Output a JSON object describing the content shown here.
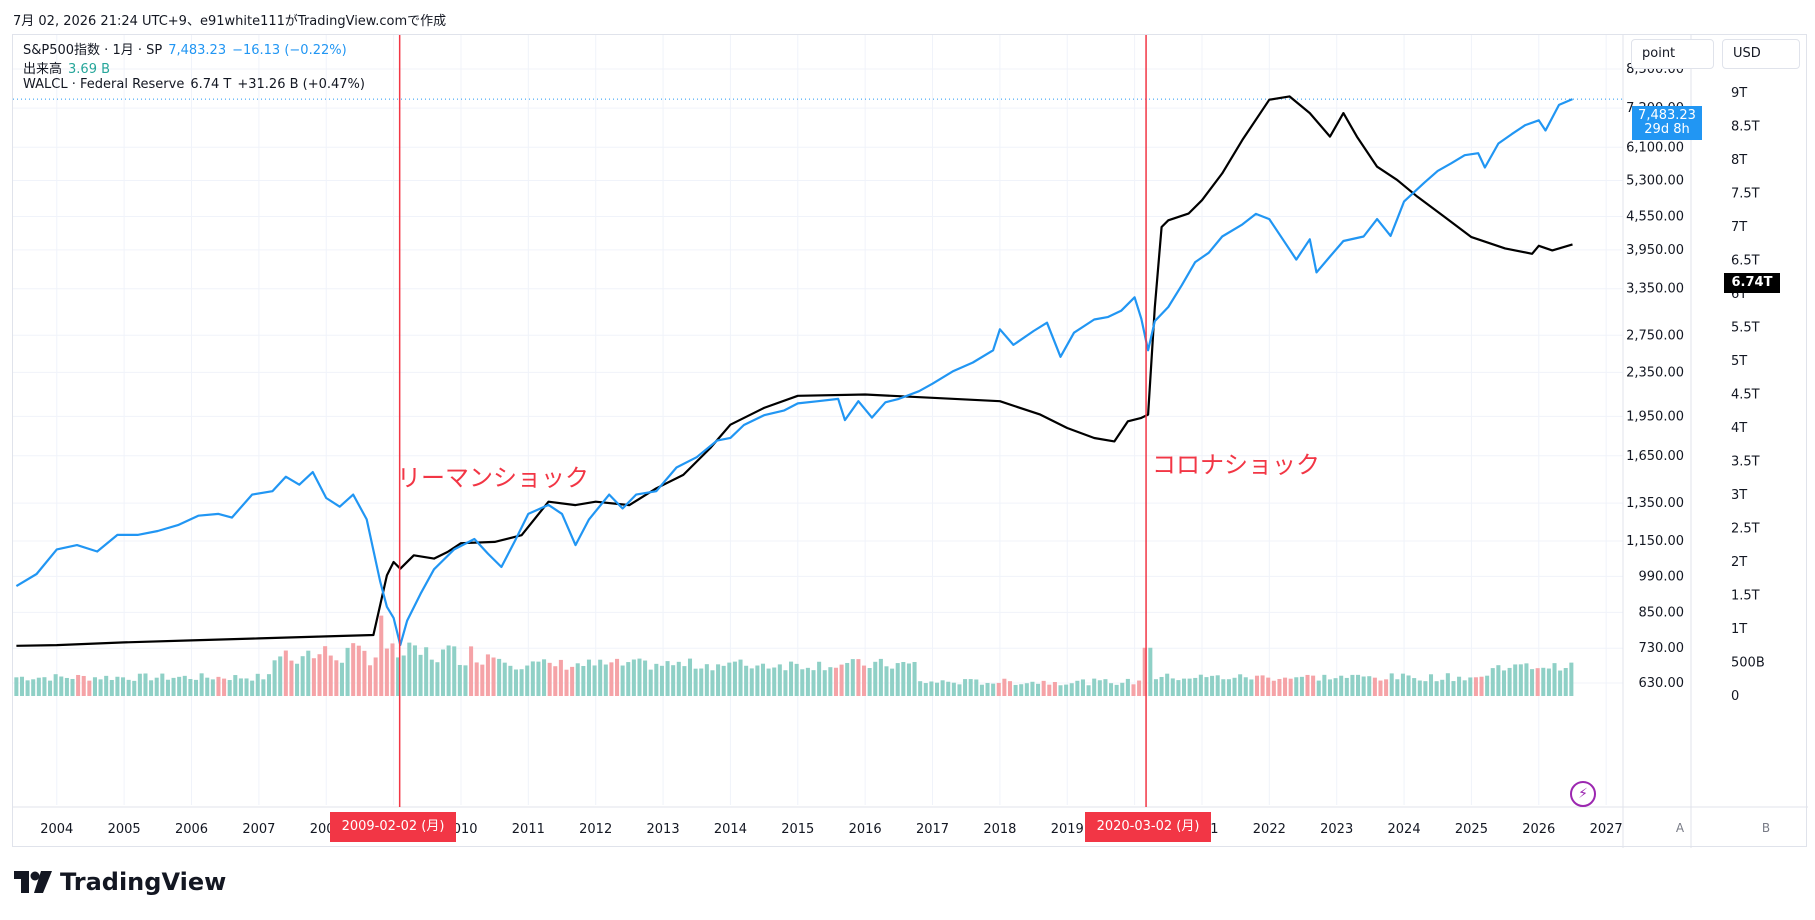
{
  "header": {
    "caption": "7月 02, 2026 21:24 UTC+9、e91white111がTradingView.comで作成"
  },
  "legend": {
    "spx": {
      "name": "S&P500指数 · 1月 · SP",
      "value": "7,483.23",
      "change": "−16.13 (−0.22%)"
    },
    "volume": {
      "name": "出来高",
      "value": "3.69 B"
    },
    "walcl": {
      "name": "WALCL · Federal Reserve",
      "value": "6.74 T",
      "change": "+31.26 B (+0.47%)"
    }
  },
  "scale_buttons": {
    "point": "point",
    "usd": "USD",
    "a": "A",
    "b": "B"
  },
  "price_tag": {
    "price": "7,483.23",
    "countdown": "29d 8h"
  },
  "walcl_tag": {
    "value": "6.74T"
  },
  "events": [
    {
      "label": "リーマンショック",
      "date": "2009-02-02 (月)",
      "x": 2009.09
    },
    {
      "label": "コロナショック",
      "date": "2020-03-02 (月)",
      "x": 2020.17
    }
  ],
  "brand": {
    "name": "TradingView"
  },
  "colors": {
    "spx": "#2196f3",
    "walcl": "#000000",
    "vol_up": "#8fd0c6",
    "vol_down": "#f5a3a7",
    "event": "#f23645",
    "grid": "#f0f3fa"
  },
  "chart_data": {
    "type": "line",
    "x_axis": {
      "type": "time",
      "ticks": [
        "2004",
        "2005",
        "2006",
        "2007",
        "2008",
        "2009",
        "2010",
        "2011",
        "2012",
        "2013",
        "2014",
        "2015",
        "2016",
        "2017",
        "2018",
        "2019",
        "2020",
        "2021",
        "2022",
        "2023",
        "2024",
        "2025",
        "2026",
        "2027"
      ],
      "range": [
        2003.35,
        2027.25
      ]
    },
    "left_axis": {
      "label": "point",
      "scale": "log",
      "ticks": [
        "8,500.00",
        "7,200.00",
        "6,100.00",
        "5,300.00",
        "4,550.00",
        "3,950.00",
        "3,350.00",
        "2,750.00",
        "2,350.00",
        "1,950.00",
        "1,650.00",
        "1,350.00",
        "1,150.00",
        "990.00",
        "850.00",
        "730.00",
        "630.00"
      ]
    },
    "right_axis": {
      "label": "USD",
      "ticks": [
        "9T",
        "8.5T",
        "8T",
        "7.5T",
        "7T",
        "6.5T",
        "6T",
        "5.5T",
        "5T",
        "4.5T",
        "4T",
        "3.5T",
        "3T",
        "2.5T",
        "2T",
        "1.5T",
        "1T",
        "500B",
        "0"
      ]
    },
    "series": [
      {
        "name": "S&P500指数",
        "axis": "left",
        "color": "#2196f3",
        "points": [
          [
            2003.4,
            950
          ],
          [
            2003.7,
            1000
          ],
          [
            2004.0,
            1110
          ],
          [
            2004.3,
            1130
          ],
          [
            2004.6,
            1100
          ],
          [
            2004.9,
            1180
          ],
          [
            2005.2,
            1180
          ],
          [
            2005.5,
            1200
          ],
          [
            2005.8,
            1230
          ],
          [
            2006.1,
            1280
          ],
          [
            2006.4,
            1290
          ],
          [
            2006.6,
            1270
          ],
          [
            2006.9,
            1400
          ],
          [
            2007.2,
            1420
          ],
          [
            2007.4,
            1510
          ],
          [
            2007.6,
            1460
          ],
          [
            2007.8,
            1540
          ],
          [
            2008.0,
            1380
          ],
          [
            2008.2,
            1330
          ],
          [
            2008.4,
            1400
          ],
          [
            2008.6,
            1260
          ],
          [
            2008.8,
            970
          ],
          [
            2008.9,
            870
          ],
          [
            2009.0,
            830
          ],
          [
            2009.1,
            740
          ],
          [
            2009.2,
            820
          ],
          [
            2009.4,
            920
          ],
          [
            2009.6,
            1020
          ],
          [
            2009.9,
            1110
          ],
          [
            2010.2,
            1160
          ],
          [
            2010.4,
            1090
          ],
          [
            2010.6,
            1030
          ],
          [
            2010.8,
            1150
          ],
          [
            2011.0,
            1290
          ],
          [
            2011.3,
            1340
          ],
          [
            2011.5,
            1290
          ],
          [
            2011.7,
            1130
          ],
          [
            2011.9,
            1260
          ],
          [
            2012.2,
            1400
          ],
          [
            2012.4,
            1320
          ],
          [
            2012.6,
            1400
          ],
          [
            2012.9,
            1420
          ],
          [
            2013.2,
            1570
          ],
          [
            2013.5,
            1640
          ],
          [
            2013.8,
            1760
          ],
          [
            2014.0,
            1780
          ],
          [
            2014.2,
            1880
          ],
          [
            2014.5,
            1960
          ],
          [
            2014.8,
            2000
          ],
          [
            2015.0,
            2060
          ],
          [
            2015.3,
            2080
          ],
          [
            2015.6,
            2100
          ],
          [
            2015.7,
            1920
          ],
          [
            2015.9,
            2080
          ],
          [
            2016.1,
            1940
          ],
          [
            2016.3,
            2070
          ],
          [
            2016.5,
            2100
          ],
          [
            2016.8,
            2170
          ],
          [
            2017.0,
            2240
          ],
          [
            2017.3,
            2360
          ],
          [
            2017.6,
            2450
          ],
          [
            2017.9,
            2580
          ],
          [
            2018.0,
            2820
          ],
          [
            2018.2,
            2640
          ],
          [
            2018.5,
            2800
          ],
          [
            2018.7,
            2900
          ],
          [
            2018.9,
            2510
          ],
          [
            2019.1,
            2780
          ],
          [
            2019.4,
            2940
          ],
          [
            2019.6,
            2970
          ],
          [
            2019.8,
            3050
          ],
          [
            2020.0,
            3230
          ],
          [
            2020.1,
            2950
          ],
          [
            2020.2,
            2580
          ],
          [
            2020.3,
            2920
          ],
          [
            2020.5,
            3100
          ],
          [
            2020.7,
            3400
          ],
          [
            2020.9,
            3750
          ],
          [
            2021.1,
            3900
          ],
          [
            2021.3,
            4180
          ],
          [
            2021.6,
            4400
          ],
          [
            2021.8,
            4600
          ],
          [
            2022.0,
            4500
          ],
          [
            2022.2,
            4130
          ],
          [
            2022.4,
            3790
          ],
          [
            2022.6,
            4130
          ],
          [
            2022.7,
            3590
          ],
          [
            2022.9,
            3840
          ],
          [
            2023.1,
            4100
          ],
          [
            2023.4,
            4180
          ],
          [
            2023.6,
            4500
          ],
          [
            2023.8,
            4190
          ],
          [
            2024.0,
            4850
          ],
          [
            2024.3,
            5250
          ],
          [
            2024.5,
            5520
          ],
          [
            2024.7,
            5700
          ],
          [
            2024.9,
            5900
          ],
          [
            2025.1,
            5950
          ],
          [
            2025.2,
            5600
          ],
          [
            2025.4,
            6200
          ],
          [
            2025.6,
            6450
          ],
          [
            2025.8,
            6700
          ],
          [
            2026.0,
            6840
          ],
          [
            2026.1,
            6550
          ],
          [
            2026.3,
            7300
          ],
          [
            2026.5,
            7483
          ]
        ]
      },
      {
        "name": "WALCL",
        "axis": "right",
        "color": "#000000",
        "points": [
          [
            2003.4,
            0.75
          ],
          [
            2004.0,
            0.76
          ],
          [
            2005.0,
            0.8
          ],
          [
            2006.0,
            0.83
          ],
          [
            2007.0,
            0.86
          ],
          [
            2008.0,
            0.89
          ],
          [
            2008.7,
            0.91
          ],
          [
            2008.9,
            1.8
          ],
          [
            2009.0,
            2.0
          ],
          [
            2009.1,
            1.9
          ],
          [
            2009.3,
            2.1
          ],
          [
            2009.6,
            2.05
          ],
          [
            2009.8,
            2.15
          ],
          [
            2010.0,
            2.28
          ],
          [
            2010.5,
            2.3
          ],
          [
            2010.9,
            2.4
          ],
          [
            2011.3,
            2.9
          ],
          [
            2011.7,
            2.85
          ],
          [
            2012.0,
            2.9
          ],
          [
            2012.5,
            2.85
          ],
          [
            2012.9,
            3.1
          ],
          [
            2013.3,
            3.3
          ],
          [
            2013.7,
            3.7
          ],
          [
            2014.0,
            4.05
          ],
          [
            2014.5,
            4.3
          ],
          [
            2015.0,
            4.48
          ],
          [
            2016.0,
            4.5
          ],
          [
            2017.0,
            4.45
          ],
          [
            2018.0,
            4.4
          ],
          [
            2018.6,
            4.2
          ],
          [
            2019.0,
            4.0
          ],
          [
            2019.4,
            3.85
          ],
          [
            2019.7,
            3.8
          ],
          [
            2019.9,
            4.1
          ],
          [
            2020.1,
            4.15
          ],
          [
            2020.2,
            4.2
          ],
          [
            2020.3,
            5.8
          ],
          [
            2020.4,
            7.0
          ],
          [
            2020.5,
            7.1
          ],
          [
            2020.8,
            7.2
          ],
          [
            2021.0,
            7.4
          ],
          [
            2021.3,
            7.8
          ],
          [
            2021.6,
            8.3
          ],
          [
            2022.0,
            8.9
          ],
          [
            2022.3,
            8.95
          ],
          [
            2022.6,
            8.7
          ],
          [
            2022.9,
            8.35
          ],
          [
            2023.1,
            8.7
          ],
          [
            2023.3,
            8.35
          ],
          [
            2023.6,
            7.9
          ],
          [
            2023.9,
            7.7
          ],
          [
            2024.2,
            7.45
          ],
          [
            2024.6,
            7.15
          ],
          [
            2025.0,
            6.85
          ],
          [
            2025.5,
            6.68
          ],
          [
            2025.9,
            6.6
          ],
          [
            2026.0,
            6.72
          ],
          [
            2026.2,
            6.65
          ],
          [
            2026.5,
            6.74
          ]
        ]
      }
    ],
    "volume_bars": {
      "axis": "right",
      "description": "monthly 出来高 (volume) histogram, green = up month, red = down month"
    }
  }
}
